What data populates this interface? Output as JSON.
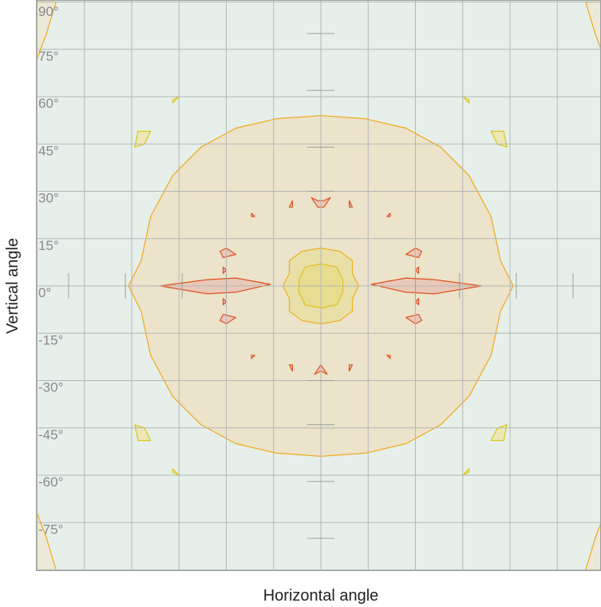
{
  "chart_data": {
    "type": "contour",
    "xlabel": "Horizontal angle",
    "ylabel": "Vertical angle",
    "xlim": [
      -90,
      90
    ],
    "ylim": [
      -90,
      90
    ],
    "grid": true,
    "y_tick_labels": [
      "90°",
      "75°",
      "60°",
      "45°",
      "30°",
      "15°",
      "0°",
      "-15°",
      "-30°",
      "-45°",
      "-60°",
      "-75°"
    ],
    "y_tick_values": [
      90,
      75,
      60,
      45,
      30,
      15,
      0,
      -15,
      -30,
      -45,
      -60,
      -75
    ],
    "colors": {
      "background": "#e6efea",
      "outer_band": "#ede9d9",
      "outer_line": "#f0a818",
      "inner_fill": "#ebe3ca",
      "center_fill": "#e8e0a8",
      "center_line": "#f0b020",
      "core_fill": "#e8dc90",
      "core_line": "#e0c020",
      "red_line": "#e05020",
      "red_fill": "#e8c8b8",
      "yellow_line": "#d8c818",
      "yellow_fill": "#ede7b8",
      "grid": "#b3b8b5"
    },
    "contours": [
      {
        "level": "outer-corner",
        "polygons": [
          [
            [
              -90,
              90
            ],
            [
              -84,
              90
            ],
            [
              -87,
              80
            ],
            [
              -90,
              72
            ]
          ],
          [
            [
              90,
              90
            ],
            [
              84,
              90
            ],
            [
              87,
              80
            ],
            [
              90,
              72
            ]
          ],
          [
            [
              -90,
              -90
            ],
            [
              -84,
              -90
            ],
            [
              -87,
              -80
            ],
            [
              -90,
              -72
            ]
          ],
          [
            [
              90,
              -90
            ],
            [
              84,
              -90
            ],
            [
              87,
              -80
            ],
            [
              90,
              -72
            ]
          ]
        ]
      },
      {
        "level": "large-disk",
        "polygons": [
          [
            [
              0,
              54
            ],
            [
              14,
              53
            ],
            [
              27,
              50
            ],
            [
              38,
              44
            ],
            [
              47,
              35
            ],
            [
              54,
              22
            ],
            [
              57,
              8
            ],
            [
              61,
              0
            ],
            [
              57,
              -8
            ],
            [
              54,
              -22
            ],
            [
              47,
              -35
            ],
            [
              38,
              -44
            ],
            [
              27,
              -50
            ],
            [
              14,
              -53
            ],
            [
              0,
              -54
            ],
            [
              -14,
              -53
            ],
            [
              -27,
              -50
            ],
            [
              -38,
              -44
            ],
            [
              -47,
              -35
            ],
            [
              -54,
              -22
            ],
            [
              -57,
              -8
            ],
            [
              -61,
              0
            ],
            [
              -57,
              8
            ],
            [
              -54,
              22
            ],
            [
              -47,
              35
            ],
            [
              -38,
              44
            ],
            [
              -27,
              50
            ],
            [
              -14,
              53
            ]
          ]
        ]
      },
      {
        "level": "center-ring",
        "polygons": [
          [
            [
              0,
              12
            ],
            [
              6,
              11
            ],
            [
              10,
              8
            ],
            [
              10,
              4
            ],
            [
              12,
              0
            ],
            [
              10,
              -4
            ],
            [
              10,
              -8
            ],
            [
              6,
              -11
            ],
            [
              0,
              -12
            ],
            [
              -6,
              -11
            ],
            [
              -10,
              -8
            ],
            [
              -10,
              -4
            ],
            [
              -12,
              0
            ],
            [
              -10,
              4
            ],
            [
              -10,
              8
            ],
            [
              -6,
              11
            ]
          ]
        ]
      },
      {
        "level": "center-core",
        "polygons": [
          [
            [
              0,
              7
            ],
            [
              5,
              6
            ],
            [
              7,
              2
            ],
            [
              7,
              -2
            ],
            [
              5,
              -6
            ],
            [
              0,
              -7
            ],
            [
              -5,
              -6
            ],
            [
              -7,
              -2
            ],
            [
              -7,
              2
            ],
            [
              -5,
              6
            ]
          ]
        ]
      },
      {
        "level": "red-peak",
        "polygons": [
          [
            [
              -51,
              0
            ],
            [
              -36,
              2
            ],
            [
              -27,
              2.5
            ],
            [
              -16,
              0.5
            ],
            [
              -27,
              -2
            ],
            [
              -36,
              -2.5
            ]
          ],
          [
            [
              16,
              0.5
            ],
            [
              27,
              2.5
            ],
            [
              36,
              2
            ],
            [
              51,
              0
            ],
            [
              36,
              -2.5
            ],
            [
              27,
              -2
            ]
          ],
          [
            [
              -30,
              12
            ],
            [
              -27,
              10
            ],
            [
              -31,
              9
            ],
            [
              -32,
              11
            ]
          ],
          [
            [
              30,
              12
            ],
            [
              27,
              10
            ],
            [
              31,
              9
            ],
            [
              32,
              11
            ]
          ],
          [
            [
              -30,
              -12
            ],
            [
              -27,
              -10
            ],
            [
              -31,
              -9
            ],
            [
              -32,
              -11
            ]
          ],
          [
            [
              30,
              -12
            ],
            [
              27,
              -10
            ],
            [
              31,
              -9
            ],
            [
              32,
              -11
            ]
          ],
          [
            [
              -3,
              28
            ],
            [
              -1,
              25
            ],
            [
              1,
              25
            ],
            [
              3,
              28
            ],
            [
              1,
              27
            ],
            [
              -1,
              27
            ]
          ],
          [
            [
              -2,
              -28
            ],
            [
              0,
              -25
            ],
            [
              2,
              -28
            ],
            [
              0,
              -27
            ]
          ],
          [
            [
              -9,
              27
            ],
            [
              -10,
              25
            ],
            [
              -9,
              25
            ]
          ],
          [
            [
              9,
              27
            ],
            [
              10,
              25
            ],
            [
              9,
              25
            ]
          ],
          [
            [
              -22,
              23
            ],
            [
              -21,
              22
            ],
            [
              -22,
              22
            ]
          ],
          [
            [
              22,
              23
            ],
            [
              21,
              22
            ],
            [
              22,
              22
            ]
          ],
          [
            [
              -22,
              -23
            ],
            [
              -21,
              -22
            ],
            [
              -22,
              -22
            ]
          ],
          [
            [
              22,
              -23
            ],
            [
              21,
              -22
            ],
            [
              22,
              -22
            ]
          ],
          [
            [
              -9,
              -27
            ],
            [
              -10,
              -25
            ],
            [
              -9,
              -25
            ]
          ],
          [
            [
              9,
              -27
            ],
            [
              10,
              -25
            ],
            [
              9,
              -25
            ]
          ],
          [
            [
              -31,
              6
            ],
            [
              -30,
              5
            ],
            [
              -31,
              4
            ]
          ],
          [
            [
              31,
              6
            ],
            [
              30,
              5
            ],
            [
              31,
              4
            ]
          ],
          [
            [
              -31,
              -6
            ],
            [
              -30,
              -5
            ],
            [
              -31,
              -4
            ]
          ],
          [
            [
              31,
              -6
            ],
            [
              30,
              -5
            ],
            [
              31,
              -4
            ]
          ]
        ]
      },
      {
        "level": "yellow-spot",
        "polygons": [
          [
            [
              -58,
              49
            ],
            [
              -54,
              49
            ],
            [
              -56,
              45
            ],
            [
              -59,
              44
            ]
          ],
          [
            [
              58,
              49
            ],
            [
              54,
              49
            ],
            [
              56,
              45
            ],
            [
              59,
              44
            ]
          ],
          [
            [
              -58,
              -49
            ],
            [
              -54,
              -49
            ],
            [
              -56,
              -45
            ],
            [
              -59,
              -44
            ]
          ],
          [
            [
              58,
              -49
            ],
            [
              54,
              -49
            ],
            [
              56,
              -45
            ],
            [
              59,
              -44
            ]
          ],
          [
            [
              -47,
              58
            ],
            [
              -45,
              60
            ],
            [
              -47,
              59
            ]
          ],
          [
            [
              47,
              58
            ],
            [
              45,
              60
            ],
            [
              47,
              59
            ]
          ],
          [
            [
              -47,
              -58
            ],
            [
              -45,
              -60
            ],
            [
              -47,
              -59
            ]
          ],
          [
            [
              47,
              -58
            ],
            [
              45,
              -60
            ],
            [
              47,
              -59
            ]
          ]
        ]
      }
    ]
  }
}
